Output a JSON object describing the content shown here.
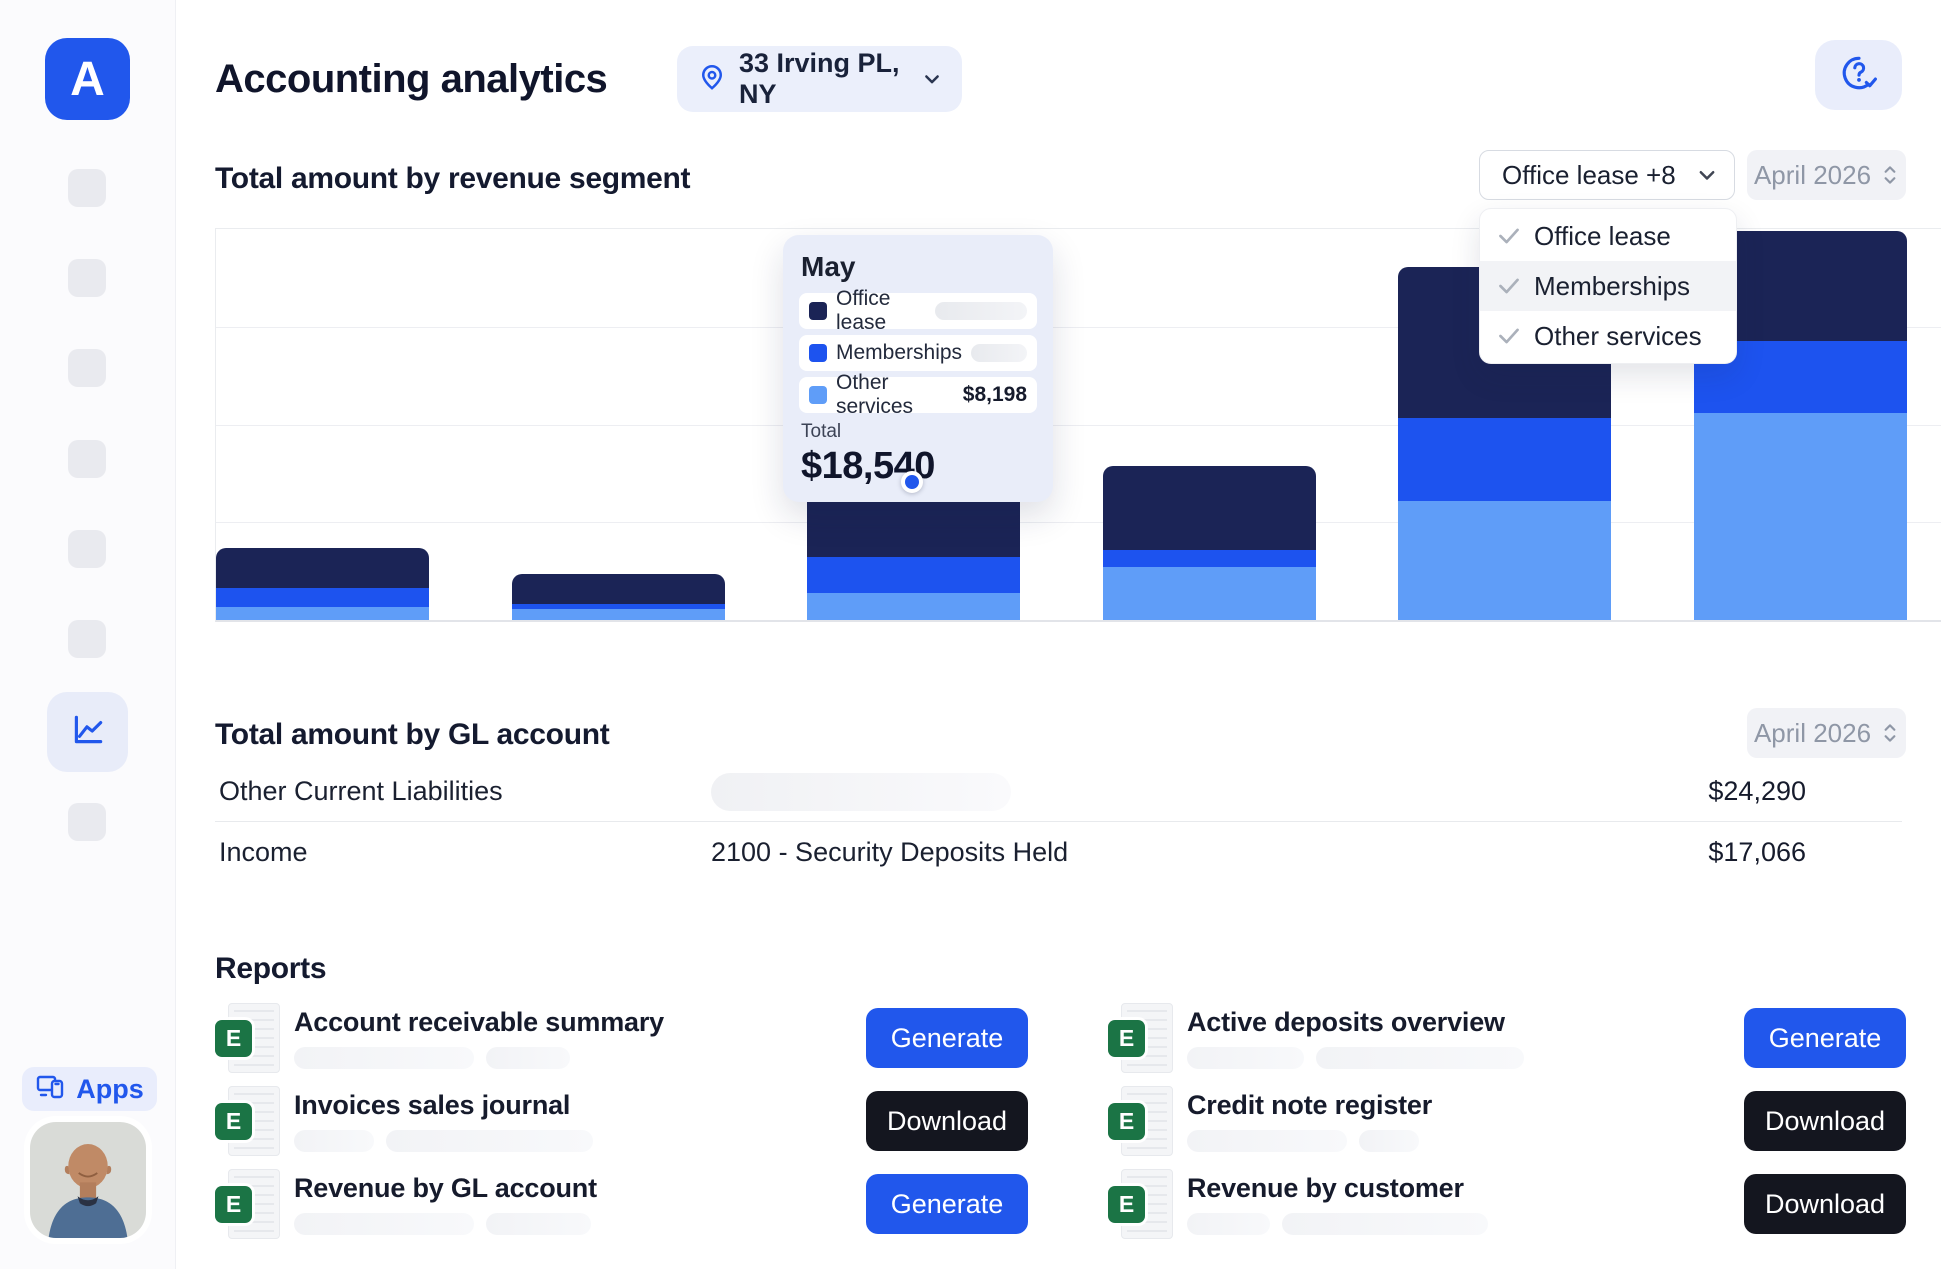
{
  "app": {
    "accent_color": "#2157EC"
  },
  "sidebar": {
    "logo_letter": "A",
    "nav_placeholders_above": 6,
    "nav_placeholders_below": 1,
    "apps_label": "Apps"
  },
  "header": {
    "title": "Accounting analytics",
    "location_label": "33 Irving PL, NY"
  },
  "revenue_section": {
    "title": "Total amount by revenue segment",
    "segment_filter_label": "Office lease +8",
    "period_label": "April 2026",
    "dropdown_options": [
      {
        "label": "Office lease",
        "checked": true,
        "highlighted": false
      },
      {
        "label": "Memberships",
        "checked": true,
        "highlighted": true
      },
      {
        "label": "Other services",
        "checked": true,
        "highlighted": false
      }
    ],
    "tooltip": {
      "month": "May",
      "rows": [
        {
          "label": "Office lease",
          "color": "#1B2456",
          "value": null,
          "redacted_width": 92
        },
        {
          "label": "Memberships",
          "color": "#1D53EF",
          "value": null,
          "redacted_width": 70
        },
        {
          "label": "Other services",
          "color": "#5F9DF8",
          "value": "$8,198"
        }
      ],
      "total_label": "Total",
      "total_value": "$18,540"
    }
  },
  "chart_data": {
    "type": "bar",
    "stacked": true,
    "title": "Total amount by revenue segment",
    "xlabel": "",
    "ylabel": "",
    "axis_labels_visible": false,
    "grid": "horizontal",
    "series_order_bottom_to_top": [
      "Other services",
      "Memberships",
      "Office lease"
    ],
    "colors": {
      "Office lease": "#1B2456",
      "Memberships": "#1D53EF",
      "Other services": "#5F9DF8"
    },
    "known_values": {
      "month": "May",
      "Other services": 8198,
      "total": 18540
    },
    "bars": [
      {
        "other_pct": 3.3,
        "memberships_pct": 4.9,
        "office_pct": 10.2,
        "month": null
      },
      {
        "other_pct": 2.8,
        "memberships_pct": 1.3,
        "office_pct": 7.7,
        "month": null
      },
      {
        "other_pct": 6.9,
        "memberships_pct": 9.2,
        "office_pct": 18.9,
        "month": "May",
        "hovered": true
      },
      {
        "other_pct": 13.6,
        "memberships_pct": 4.3,
        "office_pct": 21.5,
        "month": null
      },
      {
        "other_pct": 30.4,
        "memberships_pct": 21.2,
        "office_pct": 38.6,
        "month": null
      },
      {
        "other_pct": 52.9,
        "memberships_pct": 18.4,
        "office_pct": 28.1,
        "month": null
      }
    ],
    "note": "segment heights given as percent of plot height; dollar axis not shown in UI"
  },
  "gl_section": {
    "title": "Total amount by GL account",
    "period_label": "April 2026",
    "rows": [
      {
        "label": "Other Current Liabilities",
        "account": null,
        "account_redacted_width": 300,
        "value": "$24,290"
      },
      {
        "label": "Income",
        "account": "2100 - Security Deposits Held",
        "value": "$17,066"
      }
    ]
  },
  "reports": {
    "title": "Reports",
    "icon_letter": "E",
    "items": [
      {
        "title": "Account receivable summary",
        "action": "Generate",
        "style": "primary",
        "redacted_widths": [
          180,
          84
        ]
      },
      {
        "title": "Invoices sales journal",
        "action": "Download",
        "style": "dark",
        "redacted_widths": [
          80,
          207
        ]
      },
      {
        "title": "Revenue by GL account",
        "action": "Generate",
        "style": "primary",
        "redacted_widths": [
          180,
          105
        ]
      },
      {
        "title": "Active deposits overview",
        "action": "Generate",
        "style": "primary",
        "redacted_widths": [
          117,
          208
        ]
      },
      {
        "title": "Credit note register",
        "action": "Download",
        "style": "dark",
        "redacted_widths": [
          160,
          60
        ]
      },
      {
        "title": "Revenue by customer",
        "action": "Download",
        "style": "dark",
        "redacted_widths": [
          83,
          206
        ]
      }
    ]
  }
}
